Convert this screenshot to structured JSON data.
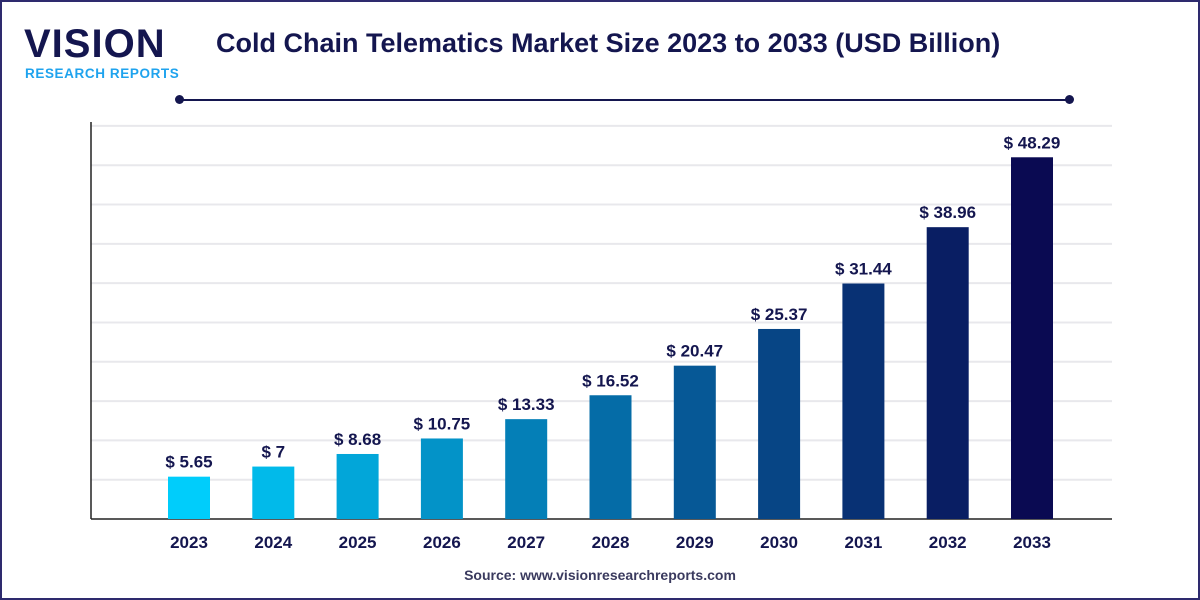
{
  "logo": {
    "main": "VISION",
    "sub": "RESEARCH REPORTS"
  },
  "header": {
    "title": "Cold Chain Telematics Market Size 2023 to 2033 (USD Billion)"
  },
  "footer": {
    "source": "Source: www.visionresearchreports.com"
  },
  "colors": {
    "start": "#00cdfb",
    "end": "#0a0a52",
    "text": "#14164f",
    "grid": "#e8e8ec"
  },
  "chart_data": {
    "type": "bar",
    "title": "Cold Chain Telematics Market Size 2023 to 2033 (USD Billion)",
    "categories": [
      "2023",
      "2024",
      "2025",
      "2026",
      "2027",
      "2028",
      "2029",
      "2030",
      "2031",
      "2032",
      "2033"
    ],
    "values": [
      5.65,
      7,
      8.68,
      10.75,
      13.33,
      16.52,
      20.47,
      25.37,
      31.44,
      38.96,
      48.29
    ],
    "labels": [
      "$ 5.65",
      "$ 7",
      "$ 8.68",
      "$ 10.75",
      "$ 13.33",
      "$ 16.52",
      "$ 20.47",
      "$ 25.37",
      "$ 31.44",
      "$ 38.96",
      "$ 48.29"
    ],
    "xlabel": "",
    "ylabel": "",
    "ylim": [
      0,
      53
    ],
    "grid": true,
    "yaxis_ticks_shown": false
  }
}
